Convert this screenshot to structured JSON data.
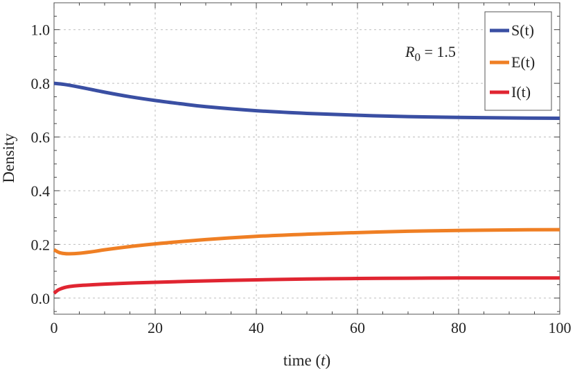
{
  "chart_data": {
    "type": "line",
    "title": "",
    "xlabel_main": "time",
    "xlabel_var": "t",
    "ylabel": "Density",
    "xlim": [
      0,
      100
    ],
    "ylim": [
      -0.06,
      1.1
    ],
    "xticks": [
      0,
      20,
      40,
      60,
      80,
      100
    ],
    "yticks": [
      0.0,
      0.2,
      0.4,
      0.6,
      0.8,
      1.0
    ],
    "xtick_labels": [
      "0",
      "20",
      "40",
      "60",
      "80",
      "100"
    ],
    "ytick_labels": [
      "0.0",
      "0.2",
      "0.4",
      "0.6",
      "0.8",
      "1.0"
    ],
    "grid": true,
    "legend_position": "top-right",
    "annotation": {
      "symbol": "R",
      "subscript": "0",
      "rest": " = 1.5"
    },
    "series": [
      {
        "name": "S(t)",
        "color": "#3a4fa3",
        "x": [
          0,
          2,
          5,
          10,
          15,
          20,
          25,
          30,
          40,
          50,
          60,
          70,
          80,
          90,
          100
        ],
        "y": [
          0.8,
          0.796,
          0.786,
          0.767,
          0.75,
          0.736,
          0.724,
          0.713,
          0.698,
          0.688,
          0.681,
          0.676,
          0.673,
          0.671,
          0.67
        ]
      },
      {
        "name": "E(t)",
        "color": "#ef7f24",
        "x": [
          0,
          1,
          2,
          3,
          5,
          8,
          10,
          15,
          20,
          30,
          40,
          50,
          60,
          70,
          80,
          90,
          100
        ],
        "y": [
          0.18,
          0.17,
          0.166,
          0.165,
          0.167,
          0.174,
          0.18,
          0.192,
          0.202,
          0.218,
          0.23,
          0.238,
          0.244,
          0.249,
          0.252,
          0.254,
          0.255
        ]
      },
      {
        "name": "I(t)",
        "color": "#e02531",
        "x": [
          0,
          0.5,
          1,
          2,
          3,
          5,
          8,
          10,
          15,
          20,
          30,
          40,
          50,
          60,
          70,
          80,
          90,
          100
        ],
        "y": [
          0.018,
          0.026,
          0.032,
          0.039,
          0.043,
          0.047,
          0.05,
          0.052,
          0.056,
          0.059,
          0.064,
          0.068,
          0.071,
          0.073,
          0.074,
          0.075,
          0.075,
          0.075
        ]
      }
    ]
  }
}
